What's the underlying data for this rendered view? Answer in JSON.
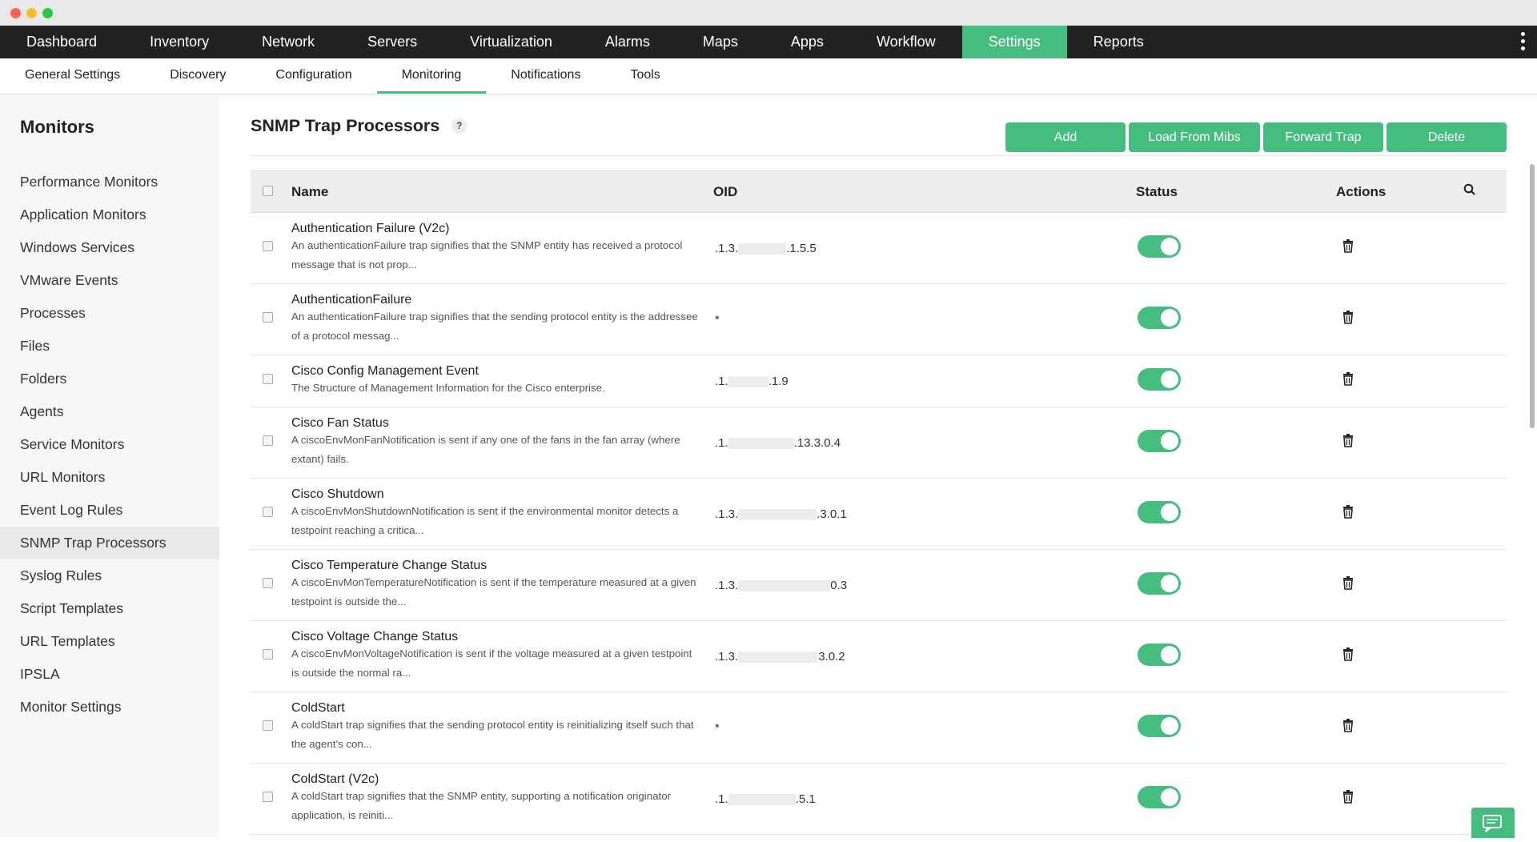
{
  "colors": {
    "accent": "#45bd7f",
    "nav_bg": "#222222"
  },
  "nav": [
    "Dashboard",
    "Inventory",
    "Network",
    "Servers",
    "Virtualization",
    "Alarms",
    "Maps",
    "Apps",
    "Workflow",
    "Settings",
    "Reports"
  ],
  "nav_active": "Settings",
  "subnav": [
    "General Settings",
    "Discovery",
    "Configuration",
    "Monitoring",
    "Notifications",
    "Tools"
  ],
  "subnav_active": "Monitoring",
  "sidebar": {
    "title": "Monitors",
    "items": [
      "Performance Monitors",
      "Application Monitors",
      "Windows Services",
      "VMware Events",
      "Processes",
      "Files",
      "Folders",
      "Agents",
      "Service Monitors",
      "URL Monitors",
      "Event Log Rules",
      "SNMP Trap Processors",
      "Syslog Rules",
      "Script Templates",
      "URL Templates",
      "IPSLA",
      "Monitor Settings"
    ],
    "active": "SNMP Trap Processors"
  },
  "page": {
    "title": "SNMP Trap Processors",
    "help": "?"
  },
  "buttons": [
    "Add",
    "Load From Mibs",
    "Forward Trap",
    "Delete"
  ],
  "table": {
    "headers": {
      "name": "Name",
      "oid": "OID",
      "status": "Status",
      "actions": "Actions"
    },
    "rows": [
      {
        "name": "Authentication Failure (V2c)",
        "desc": "An authenticationFailure trap signifies that the SNMP entity has received a protocol message that is not prop...",
        "oid_pre": ".1.3.",
        "oid_post": ".1.5.5",
        "status": true
      },
      {
        "name": "AuthenticationFailure",
        "desc": "An authenticationFailure trap signifies that the sending protocol entity is the addressee of a protocol messag...",
        "oid_pre": "*",
        "oid_post": "",
        "status": true
      },
      {
        "name": "Cisco Config Management Event",
        "desc": "The Structure of Management Information for the Cisco enterprise.",
        "oid_pre": ".1.",
        "oid_post": ".1.9",
        "status": true
      },
      {
        "name": "Cisco Fan Status",
        "desc": "A ciscoEnvMonFanNotification is sent if any one of the fans in the fan array (where extant) fails.",
        "oid_pre": ".1.",
        "oid_post": ".13.3.0.4",
        "status": true
      },
      {
        "name": "Cisco Shutdown",
        "desc": "A ciscoEnvMonShutdownNotification is sent if the environmental monitor detects a testpoint reaching a critica...",
        "oid_pre": ".1.3.",
        "oid_post": ".3.0.1",
        "status": true
      },
      {
        "name": "Cisco Temperature Change Status",
        "desc": "A ciscoEnvMonTemperatureNotification is sent if the temperature measured at a given testpoint is outside the...",
        "oid_pre": ".1.3.",
        "oid_post": "0.3",
        "status": true
      },
      {
        "name": "Cisco Voltage Change Status",
        "desc": "A ciscoEnvMonVoltageNotification is sent if the voltage measured at a given testpoint is outside the normal ra...",
        "oid_pre": ".1.3.",
        "oid_post": "3.0.2",
        "status": true
      },
      {
        "name": "ColdStart",
        "desc": "A coldStart trap signifies that the sending protocol entity is reinitializing itself such that the agent's con...",
        "oid_pre": "*",
        "oid_post": "",
        "status": true
      },
      {
        "name": "ColdStart (V2c)",
        "desc": "A coldStart trap signifies that the SNMP entity, supporting a notification originator application, is reiniti...",
        "oid_pre": ".1.",
        "oid_post": ".5.1",
        "status": true
      }
    ]
  }
}
